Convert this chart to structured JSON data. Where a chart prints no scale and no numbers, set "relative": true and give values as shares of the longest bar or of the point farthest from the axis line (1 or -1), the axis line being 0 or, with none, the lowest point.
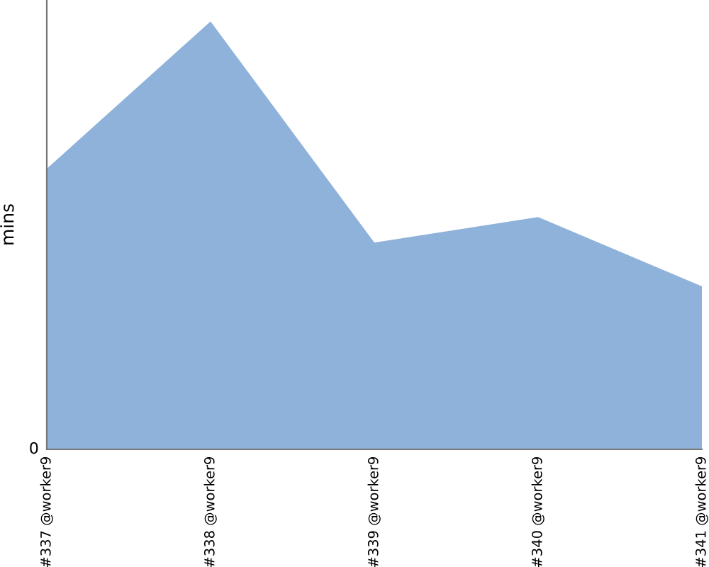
{
  "chart_data": {
    "type": "area",
    "relative": true,
    "ylabel": "mins",
    "categories": [
      "#337 @worker9",
      "#338 @worker9",
      "#339 @worker9",
      "#340 @worker9",
      "#341 @worker9"
    ],
    "series": [
      {
        "color": "#8fb2da",
        "values": [
          0.656,
          1,
          0.483,
          0.543,
          0.381
        ]
      }
    ],
    "annotations": [
      "0"
    ],
    "grid": false,
    "legend": false
  }
}
